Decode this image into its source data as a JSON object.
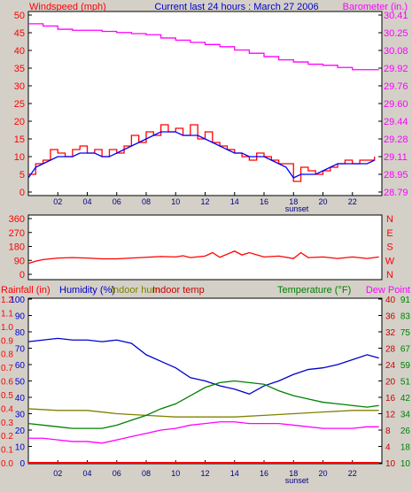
{
  "chart_data": [
    {
      "type": "line",
      "title": "Current last 24 hours : March 27 2006",
      "y_left_label": "Windspeed (mph)",
      "y_right_label": "Barometer (in.)",
      "x_ticks": [
        "02",
        "04",
        "06",
        "08",
        "10",
        "12",
        "14",
        "16",
        "18",
        "20",
        "22"
      ],
      "x_annotation": "sunset",
      "y_left_range": [
        0,
        50
      ],
      "y_left_ticks": [
        "0",
        "5",
        "10",
        "15",
        "20",
        "25",
        "30",
        "35",
        "40",
        "45",
        "50"
      ],
      "y_right_range": [
        28.79,
        30.41
      ],
      "y_right_ticks": [
        "28.79",
        "28.95",
        "29.11",
        "29.28",
        "29.44",
        "29.60",
        "29.76",
        "29.92",
        "30.08",
        "30.25",
        "30.41"
      ],
      "grid": false,
      "series": [
        {
          "name": "Wind gust",
          "color": "#ff0000",
          "axis": "left",
          "x": [
            0.0,
            0.5,
            1.0,
            1.5,
            2.0,
            2.5,
            3.0,
            3.5,
            4.0,
            4.5,
            5.0,
            5.5,
            6.0,
            6.5,
            7.0,
            7.5,
            8.0,
            8.5,
            9.0,
            9.5,
            10.0,
            10.5,
            11.0,
            11.5,
            12.0,
            12.5,
            13.0,
            13.5,
            14.0,
            14.5,
            15.0,
            15.5,
            16.0,
            16.5,
            17.0,
            17.5,
            18.0,
            18.5,
            19.0,
            19.5,
            20.0,
            20.5,
            21.0,
            21.5,
            22.0,
            22.5,
            23.0,
            23.5
          ],
          "values": [
            5,
            8,
            9,
            12,
            11,
            10,
            12,
            13,
            11,
            12,
            10,
            12,
            11,
            13,
            16,
            14,
            17,
            16,
            19,
            17,
            18,
            16,
            19,
            15,
            17,
            14,
            13,
            12,
            11,
            10,
            9,
            11,
            10,
            9,
            8,
            8,
            3,
            7,
            6,
            5,
            6,
            7,
            8,
            9,
            8,
            9,
            9,
            10
          ]
        },
        {
          "name": "Wind average",
          "color": "#0000ff",
          "axis": "left",
          "x": [
            0.0,
            0.5,
            1.0,
            1.5,
            2.0,
            2.5,
            3.0,
            3.5,
            4.0,
            4.5,
            5.0,
            5.5,
            6.0,
            6.5,
            7.0,
            7.5,
            8.0,
            8.5,
            9.0,
            9.5,
            10.0,
            10.5,
            11.0,
            11.5,
            12.0,
            12.5,
            13.0,
            13.5,
            14.0,
            14.5,
            15.0,
            15.5,
            16.0,
            16.5,
            17.0,
            17.5,
            18.0,
            18.5,
            19.0,
            19.5,
            20.0,
            20.5,
            21.0,
            21.5,
            22.0,
            22.5,
            23.0,
            23.5
          ],
          "values": [
            4,
            7,
            8,
            9,
            10,
            10,
            10,
            11,
            11,
            11,
            10,
            10,
            11,
            12,
            13,
            14,
            15,
            16,
            17,
            17,
            17,
            16,
            16,
            16,
            15,
            14,
            13,
            12,
            11,
            11,
            10,
            10,
            10,
            9,
            8,
            7,
            4,
            5,
            5,
            5,
            6,
            7,
            8,
            8,
            8,
            8,
            8,
            9
          ]
        },
        {
          "name": "Barometer",
          "color": "#ff00ff",
          "axis": "right",
          "x": [
            0,
            1,
            2,
            3,
            4,
            5,
            6,
            7,
            8,
            9,
            10,
            11,
            12,
            13,
            14,
            15,
            16,
            17,
            18,
            19,
            20,
            21,
            22,
            23,
            23.8
          ],
          "values": [
            30.33,
            30.31,
            30.28,
            30.27,
            30.27,
            30.26,
            30.25,
            30.24,
            30.23,
            30.2,
            30.18,
            30.16,
            30.14,
            30.12,
            30.09,
            30.06,
            30.03,
            30.0,
            29.98,
            29.96,
            29.95,
            29.93,
            29.91,
            29.91,
            29.91
          ]
        }
      ]
    },
    {
      "type": "line",
      "y_left_ticks": [
        "0",
        "90",
        "180",
        "270",
        "360"
      ],
      "y_left_range": [
        0,
        360
      ],
      "y_right_ticks": [
        "N",
        "W",
        "S",
        "E",
        "N"
      ],
      "series": [
        {
          "name": "Wind direction",
          "color": "#ff0000",
          "x": [
            0,
            0.5,
            1,
            1.5,
            2,
            3,
            4,
            5,
            6,
            7,
            8,
            9,
            10,
            10.5,
            11,
            12,
            12.5,
            13,
            14,
            14.5,
            15,
            16,
            17,
            18,
            18.5,
            19,
            20,
            21,
            22,
            23,
            23.8
          ],
          "values": [
            70,
            85,
            95,
            100,
            105,
            108,
            105,
            100,
            100,
            105,
            110,
            115,
            112,
            120,
            108,
            118,
            140,
            110,
            150,
            125,
            140,
            112,
            118,
            102,
            140,
            108,
            112,
            102,
            112,
            102,
            112
          ]
        }
      ]
    },
    {
      "type": "line",
      "labels": [
        "Rainfall (in)",
        "Humidity (%)",
        "Indoor hum",
        "Indoor temp",
        "Temperature (°F)",
        "Dew Point"
      ],
      "x_ticks": [
        "02",
        "04",
        "06",
        "08",
        "10",
        "12",
        "14",
        "16",
        "18",
        "20",
        "22"
      ],
      "x_annotation": "sunset",
      "y_rain_ticks": [
        "0.0",
        "0.1",
        "0.2",
        "0.3",
        "0.4",
        "0.5",
        "0.6",
        "0.7",
        "0.8",
        "0.9",
        "1.0",
        "1.1",
        "1.2"
      ],
      "y_hum_ticks": [
        "0",
        "10",
        "20",
        "30",
        "40",
        "50",
        "60",
        "70",
        "80",
        "90",
        "100"
      ],
      "y_hum_range": [
        0,
        100
      ],
      "y_temp_left_ticks": [
        "10",
        "14",
        "18",
        "22",
        "26",
        "30",
        "34",
        "38",
        "42",
        "46",
        "50"
      ],
      "y_temp_left_labels": [
        "10",
        "4",
        "8",
        "12",
        "16",
        "20",
        "24",
        "28",
        "32",
        "36",
        "40"
      ],
      "y_temp_right_ticks": [
        "26",
        "34",
        "42",
        "51",
        "59",
        "67",
        "75",
        "83",
        "91"
      ],
      "y_temp_right_labels": [
        "10",
        "18",
        "26",
        "34",
        "42",
        "51",
        "59",
        "67",
        "75",
        "83",
        "91"
      ],
      "series": [
        {
          "name": "Humidity",
          "color": "#0000cc",
          "axis": "hum",
          "x": [
            0,
            1,
            2,
            3,
            4,
            5,
            6,
            7,
            8,
            9,
            10,
            11,
            12,
            13,
            14,
            15,
            16,
            17,
            18,
            19,
            20,
            21,
            22,
            23,
            23.8
          ],
          "values": [
            74,
            75,
            76,
            75,
            75,
            74,
            75,
            73,
            66,
            62,
            58,
            52,
            50,
            47,
            45,
            42,
            47,
            50,
            54,
            57,
            58,
            60,
            63,
            66,
            64
          ]
        },
        {
          "name": "Indoor hum",
          "color": "#808000",
          "axis": "hum",
          "x": [
            0,
            2,
            4,
            6,
            8,
            10,
            12,
            14,
            16,
            18,
            20,
            22,
            23.8
          ],
          "values": [
            33,
            32,
            32,
            30,
            29,
            28,
            28,
            28,
            29,
            30,
            31,
            32,
            32
          ]
        },
        {
          "name": "Temperature",
          "color": "#008000",
          "axis": "hum",
          "x": [
            0,
            1,
            2,
            3,
            4,
            5,
            6,
            7,
            8,
            9,
            10,
            11,
            12,
            13,
            14,
            15,
            16,
            17,
            18,
            19,
            20,
            21,
            22,
            23,
            23.8
          ],
          "values": [
            24,
            23,
            22,
            21,
            21,
            21,
            23,
            26,
            29,
            33,
            36,
            41,
            46,
            49,
            50,
            49,
            48,
            44,
            41,
            39,
            37,
            36,
            35,
            34,
            35
          ]
        },
        {
          "name": "Dew Point",
          "color": "#ff00ff",
          "axis": "hum",
          "x": [
            0,
            1,
            2,
            3,
            4,
            5,
            6,
            7,
            8,
            9,
            10,
            11,
            12,
            13,
            14,
            15,
            16,
            17,
            18,
            19,
            20,
            21,
            22,
            23,
            23.8
          ],
          "values": [
            15,
            15,
            14,
            13,
            13,
            12,
            14,
            16,
            18,
            20,
            21,
            23,
            24,
            25,
            25,
            24,
            24,
            24,
            23,
            22,
            21,
            21,
            21,
            22,
            22
          ]
        },
        {
          "name": "Rainfall",
          "color": "#ff0000",
          "axis": "hum",
          "x": [
            0,
            23.8
          ],
          "values": [
            0,
            0
          ]
        }
      ]
    }
  ]
}
